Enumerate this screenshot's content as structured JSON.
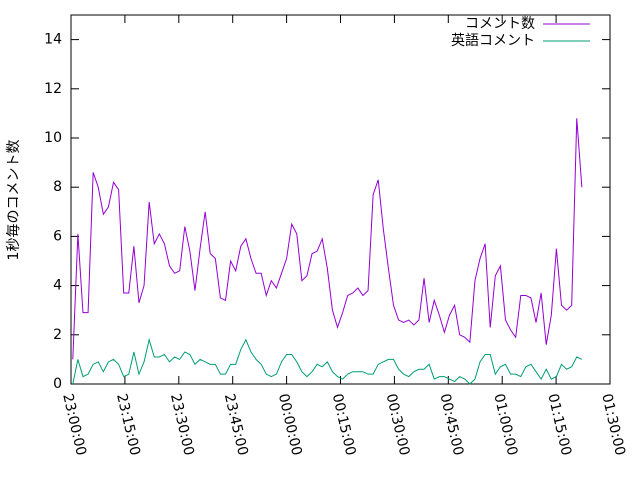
{
  "chart_data": {
    "type": "line",
    "y_label": "1秒毎のコメント数",
    "x": [
      "23:00:30",
      "23:01:55",
      "23:03:20",
      "23:04:45",
      "23:06:10",
      "23:07:35",
      "23:09:00",
      "23:10:25",
      "23:11:50",
      "23:13:15",
      "23:14:40",
      "23:16:05",
      "23:17:30",
      "23:18:55",
      "23:20:20",
      "23:21:45",
      "23:23:10",
      "23:24:35",
      "23:26:00",
      "23:27:25",
      "23:28:50",
      "23:30:15",
      "23:31:40",
      "23:33:05",
      "23:34:30",
      "23:35:55",
      "23:37:20",
      "23:38:45",
      "23:40:10",
      "23:41:35",
      "23:43:00",
      "23:44:25",
      "23:45:50",
      "23:47:15",
      "23:48:40",
      "23:50:05",
      "23:51:30",
      "23:52:55",
      "23:54:20",
      "23:55:45",
      "23:57:10",
      "23:58:35",
      "00:00:00",
      "00:01:25",
      "00:02:50",
      "00:04:15",
      "00:05:40",
      "00:07:05",
      "00:08:30",
      "00:09:55",
      "00:11:20",
      "00:12:45",
      "00:14:10",
      "00:15:35",
      "00:17:00",
      "00:18:25",
      "00:19:50",
      "00:21:15",
      "00:22:40",
      "00:24:05",
      "00:25:30",
      "00:26:55",
      "00:28:20",
      "00:29:45",
      "00:31:10",
      "00:32:35",
      "00:34:00",
      "00:35:25",
      "00:36:50",
      "00:38:15",
      "00:39:40",
      "00:41:05",
      "00:42:30",
      "00:43:55",
      "00:45:20",
      "00:46:45",
      "00:48:10",
      "00:49:35",
      "00:51:00",
      "00:52:25",
      "00:53:50",
      "00:55:15",
      "00:56:40",
      "00:58:05",
      "00:59:30",
      "01:00:55",
      "01:02:20",
      "01:03:45",
      "01:05:10",
      "01:06:35",
      "01:08:00",
      "01:09:25",
      "01:10:50",
      "01:12:15",
      "01:13:40",
      "01:15:05",
      "01:16:30",
      "01:17:55",
      "01:19:20",
      "01:20:45",
      "01:22:10"
    ],
    "series": [
      {
        "name": "コメント数",
        "color": "#9400d3",
        "values": [
          1.0,
          6.1,
          2.9,
          2.9,
          8.6,
          8.0,
          6.9,
          7.2,
          8.2,
          7.9,
          3.7,
          3.7,
          5.6,
          3.3,
          4.0,
          7.4,
          5.7,
          6.1,
          5.7,
          4.8,
          4.5,
          4.6,
          6.4,
          5.4,
          3.8,
          5.5,
          7.0,
          5.3,
          5.1,
          3.5,
          3.4,
          5.0,
          4.6,
          5.6,
          5.9,
          5.1,
          4.5,
          4.5,
          3.6,
          4.2,
          3.9,
          4.5,
          5.1,
          6.5,
          6.1,
          4.2,
          4.4,
          5.3,
          5.4,
          5.9,
          4.7,
          3.0,
          2.3,
          2.9,
          3.6,
          3.7,
          3.9,
          3.6,
          3.8,
          7.7,
          8.3,
          6.3,
          4.7,
          3.2,
          2.6,
          2.5,
          2.6,
          2.4,
          2.6,
          4.3,
          2.5,
          3.4,
          2.8,
          2.1,
          2.8,
          3.2,
          2.0,
          1.9,
          1.7,
          4.2,
          5.1,
          5.7,
          2.3,
          4.4,
          4.8,
          2.6,
          2.2,
          1.9,
          3.6,
          3.6,
          3.5,
          2.5,
          3.7,
          1.6,
          2.8,
          5.5,
          3.2,
          3.0,
          3.2,
          10.8,
          8.0
        ]
      },
      {
        "name": "英語コメント",
        "color": "#009e73",
        "values": [
          0,
          1.0,
          0.3,
          0.4,
          0.8,
          0.9,
          0.5,
          0.9,
          1.0,
          0.8,
          0.3,
          0.4,
          1.3,
          0.4,
          0.9,
          1.8,
          1.1,
          1.1,
          1.2,
          0.9,
          1.1,
          1.0,
          1.3,
          1.2,
          0.8,
          1.0,
          0.9,
          0.8,
          0.8,
          0.4,
          0.4,
          0.8,
          0.8,
          1.4,
          1.8,
          1.3,
          1.0,
          0.8,
          0.4,
          0.3,
          0.4,
          0.9,
          1.2,
          1.2,
          0.9,
          0.5,
          0.3,
          0.5,
          0.8,
          0.7,
          0.9,
          0.5,
          0.3,
          0.2,
          0.4,
          0.5,
          0.5,
          0.5,
          0.4,
          0.4,
          0.8,
          0.9,
          1.0,
          1.0,
          0.6,
          0.4,
          0.3,
          0.5,
          0.6,
          0.6,
          0.8,
          0.2,
          0.3,
          0.3,
          0.2,
          0.1,
          0.3,
          0.2,
          0.0,
          0.2,
          0.9,
          1.2,
          1.2,
          0.4,
          0.7,
          0.8,
          0.4,
          0.4,
          0.3,
          0.7,
          0.8,
          0.5,
          0.2,
          0.6,
          0.2,
          0.3,
          0.8,
          0.6,
          0.7,
          1.1,
          1.0
        ]
      }
    ],
    "xlim": [
      "23:00:00",
      "01:30:00"
    ],
    "xticks": [
      "23:00:00",
      "23:15:00",
      "23:30:00",
      "23:45:00",
      "00:00:00",
      "00:15:00",
      "00:30:00",
      "00:45:00",
      "01:00:00",
      "01:15:00",
      "01:30:00"
    ],
    "ylim": [
      0,
      15
    ],
    "yticks": [
      0,
      2,
      4,
      6,
      8,
      10,
      12,
      14
    ],
    "grid": false,
    "legend": "top-right"
  }
}
